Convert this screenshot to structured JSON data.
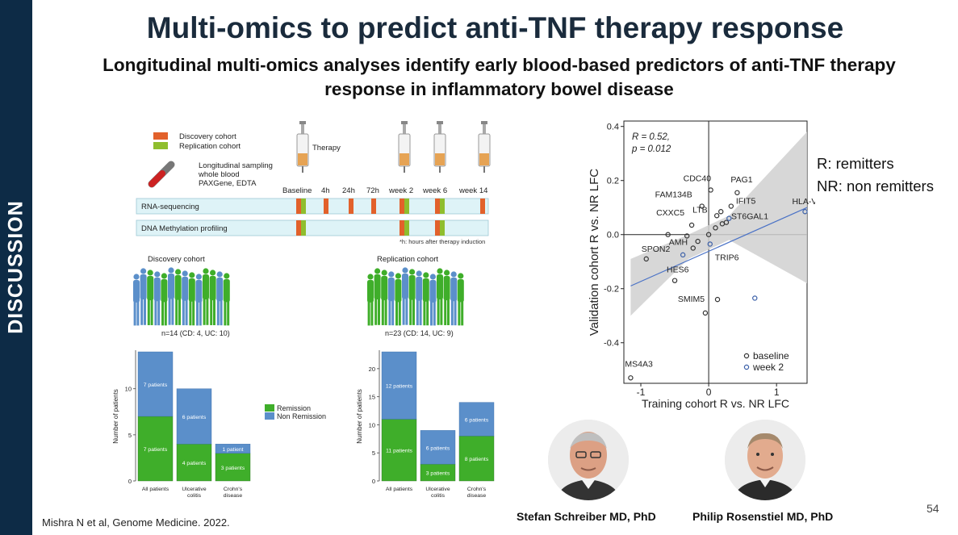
{
  "sidebar": {
    "label": "DISCUSSION"
  },
  "title": "Multi-omics to predict anti-TNF therapy response",
  "subtitle": "Longitudinal multi-omics analyses identify early blood-based predictors of anti-TNF therapy response in inflammatory bowel disease",
  "citation": "Mishra N et al, Genome Medicine. 2022.",
  "page_number": "54",
  "rnr_legend": {
    "r": "R: remitters",
    "nr": "NR: non remitters"
  },
  "people": [
    {
      "name": "Stefan Schreiber MD, PhD"
    },
    {
      "name": "Philip Rosenstiel MD, PhD"
    }
  ],
  "colors": {
    "sidebar": "#0d2b46",
    "discovery": "#e2612b",
    "replication": "#8fbe2e",
    "remission": "#3fae2a",
    "non_remission": "#5b8fca",
    "track_bg": "#def3f7",
    "ci_band": "#d0d0d0",
    "regression": "#4a72c6"
  },
  "timeline": {
    "legend_discovery": "Discovery cohort",
    "legend_replication": "Replication cohort",
    "therapy": "Therapy",
    "sampling_line1": "Longitudinal sampling",
    "sampling_line2": "whole blood",
    "sampling_line3": "PAXGene, EDTA",
    "timepoints": [
      "Baseline",
      "4h",
      "24h",
      "72h",
      "week 2",
      "week 6",
      "week 14"
    ],
    "tracks": [
      "RNA-sequencing",
      "DNA Methylation profiling"
    ],
    "footnote": "*h: hours after therapy induction"
  },
  "cohorts": {
    "discovery": {
      "label": "Discovery cohort",
      "n": "n=14 (CD: 4, UC: 10)"
    },
    "replication": {
      "label": "Replication cohort",
      "n": "n=23 (CD: 14, UC: 9)"
    }
  },
  "chart_data": [
    {
      "type": "bar",
      "title": "",
      "ylabel": "Number of patients",
      "categories": [
        "All patients",
        "Ulcerative colitis",
        "Crohn's disease"
      ],
      "ylim": [
        0,
        14
      ],
      "yticks": [
        "0",
        "5",
        "10"
      ],
      "series": [
        {
          "name": "Remission",
          "values": [
            7,
            4,
            3
          ],
          "labels": [
            "7 patients",
            "4 patients",
            "3 patients"
          ]
        },
        {
          "name": "Non Remission",
          "values": [
            7,
            6,
            1
          ],
          "labels": [
            "7 patients",
            "6 patients",
            "1 patient"
          ]
        }
      ],
      "legend": [
        "Remission",
        "Non Remission"
      ]
    },
    {
      "type": "bar",
      "title": "",
      "ylabel": "Number of patients",
      "categories": [
        "All patients",
        "Ulcerative colitis",
        "Crohn's disease"
      ],
      "ylim": [
        0,
        23
      ],
      "yticks": [
        "0",
        "5",
        "10",
        "15",
        "20"
      ],
      "series": [
        {
          "name": "Remission",
          "values": [
            11,
            3,
            8
          ],
          "labels": [
            "11 patients",
            "3 patients",
            "8 patients"
          ]
        },
        {
          "name": "Non Remission",
          "values": [
            12,
            6,
            6
          ],
          "labels": [
            "12 patients",
            "6 patients",
            "6 patients"
          ]
        }
      ]
    },
    {
      "type": "scatter",
      "xlabel": "Training cohort R vs. NR LFC",
      "ylabel": "Validation cohort R vs. NR LFC",
      "xlim": [
        -1.25,
        1.45
      ],
      "ylim": [
        -0.55,
        0.42
      ],
      "xticks": [
        "-1",
        "0",
        "1"
      ],
      "yticks": [
        "-0.4",
        "-0.2",
        "0.0",
        "0.2",
        "0.4"
      ],
      "annotation_r": "R = 0.52,",
      "annotation_p": "p = 0.012",
      "legend": [
        "baseline",
        "week 2"
      ],
      "regression": {
        "x0": -1.15,
        "y0": -0.19,
        "x1": 1.45,
        "y1": 0.1
      },
      "points": [
        {
          "label": "MS4A3",
          "x": -1.15,
          "y": -0.53,
          "series": "baseline"
        },
        {
          "label": "HLA-V",
          "x": 1.42,
          "y": 0.085,
          "series": "week 2"
        },
        {
          "label": "CDC40",
          "x": 0.03,
          "y": 0.165,
          "series": "baseline"
        },
        {
          "label": "FAM134B",
          "x": -0.1,
          "y": 0.105,
          "series": "baseline"
        },
        {
          "label": "PAG1",
          "x": 0.42,
          "y": 0.155,
          "series": "baseline"
        },
        {
          "label": "IFIT5",
          "x": 0.33,
          "y": 0.105,
          "series": "baseline"
        },
        {
          "label": "LTB",
          "x": 0.12,
          "y": 0.07,
          "series": "baseline"
        },
        {
          "label": "ST6GAL1",
          "x": 0.26,
          "y": 0.045,
          "series": "baseline"
        },
        {
          "label": "CXXC5",
          "x": -0.25,
          "y": 0.035,
          "series": "baseline"
        },
        {
          "label": "AMH",
          "x": -0.23,
          "y": -0.05,
          "series": "baseline"
        },
        {
          "label": "SPON2",
          "x": -0.92,
          "y": -0.09,
          "series": "baseline"
        },
        {
          "label": "TRIP6",
          "x": 0.02,
          "y": -0.035,
          "series": "week 2"
        },
        {
          "label": "HES6",
          "x": -0.5,
          "y": -0.17,
          "series": "baseline"
        },
        {
          "label": "SMIM5",
          "x": -0.05,
          "y": -0.29,
          "series": "baseline"
        },
        {
          "label": "",
          "x": 0.13,
          "y": -0.24,
          "series": "baseline"
        },
        {
          "label": "",
          "x": 0.68,
          "y": -0.235,
          "series": "week 2"
        },
        {
          "label": "",
          "x": -0.6,
          "y": 0.0,
          "series": "baseline"
        },
        {
          "label": "",
          "x": -0.32,
          "y": -0.005,
          "series": "baseline"
        },
        {
          "label": "",
          "x": 0.0,
          "y": 0.0,
          "series": "baseline"
        },
        {
          "label": "",
          "x": -0.16,
          "y": -0.025,
          "series": "baseline"
        },
        {
          "label": "",
          "x": 0.18,
          "y": 0.085,
          "series": "baseline"
        },
        {
          "label": "",
          "x": 0.2,
          "y": 0.04,
          "series": "baseline"
        },
        {
          "label": "",
          "x": 0.1,
          "y": 0.025,
          "series": "baseline"
        },
        {
          "label": "",
          "x": -0.38,
          "y": -0.075,
          "series": "week 2"
        },
        {
          "label": "",
          "x": 0.3,
          "y": 0.06,
          "series": "week 2"
        }
      ]
    }
  ]
}
